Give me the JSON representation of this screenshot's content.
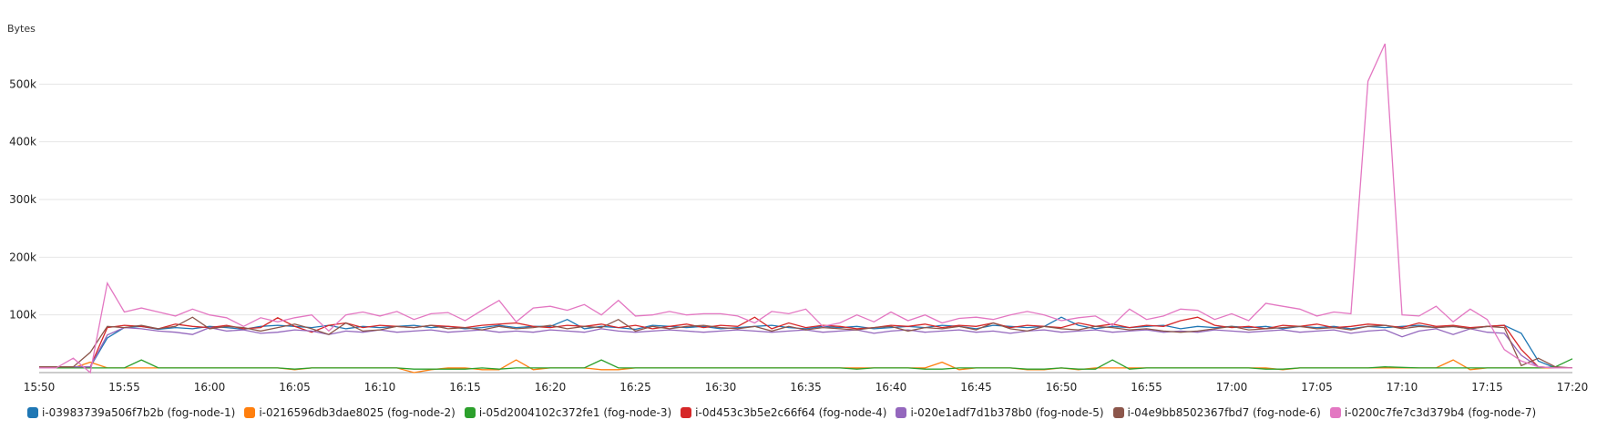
{
  "chart_data": {
    "type": "line",
    "ylabel": "Bytes",
    "ylim": [
      0,
      570000
    ],
    "y_ticks": [
      "100k",
      "200k",
      "300k",
      "400k",
      "500k"
    ],
    "y_tick_values": [
      100000,
      200000,
      300000,
      400000,
      500000
    ],
    "x_ticks": [
      "15:50",
      "15:55",
      "16:00",
      "16:05",
      "16:10",
      "16:15",
      "16:20",
      "16:25",
      "16:30",
      "16:35",
      "16:40",
      "16:45",
      "16:50",
      "16:55",
      "17:00",
      "17:05",
      "17:10",
      "17:15",
      "17:20"
    ],
    "x": [
      "15:50",
      "15:51",
      "15:52",
      "15:53",
      "15:54",
      "15:55",
      "15:56",
      "15:57",
      "15:58",
      "15:59",
      "16:00",
      "16:01",
      "16:02",
      "16:03",
      "16:04",
      "16:05",
      "16:06",
      "16:07",
      "16:08",
      "16:09",
      "16:10",
      "16:11",
      "16:12",
      "16:13",
      "16:14",
      "16:15",
      "16:16",
      "16:17",
      "16:18",
      "16:19",
      "16:20",
      "16:21",
      "16:22",
      "16:23",
      "16:24",
      "16:25",
      "16:26",
      "16:27",
      "16:28",
      "16:29",
      "16:30",
      "16:31",
      "16:32",
      "16:33",
      "16:34",
      "16:35",
      "16:36",
      "16:37",
      "16:38",
      "16:39",
      "16:40",
      "16:41",
      "16:42",
      "16:43",
      "16:44",
      "16:45",
      "16:46",
      "16:47",
      "16:48",
      "16:49",
      "16:50",
      "16:51",
      "16:52",
      "16:53",
      "16:54",
      "16:55",
      "16:56",
      "16:57",
      "16:58",
      "16:59",
      "17:00",
      "17:01",
      "17:02",
      "17:03",
      "17:04",
      "17:05",
      "17:06",
      "17:07",
      "17:08",
      "17:09",
      "17:10",
      "17:11",
      "17:12",
      "17:13",
      "17:14",
      "17:15",
      "17:16",
      "17:17",
      "17:18",
      "17:19",
      "17:20"
    ],
    "grid": true,
    "legend_position": "bottom",
    "series": [
      {
        "name": "i-03983739a506f7b2b (fog-node-1)",
        "color": "#1f77b4",
        "values": [
          8000,
          8000,
          8000,
          10000,
          60000,
          78000,
          80000,
          75000,
          78000,
          76000,
          80000,
          78000,
          75000,
          80000,
          82000,
          80000,
          78000,
          82000,
          76000,
          80000,
          78000,
          80000,
          82000,
          78000,
          80000,
          76000,
          78000,
          82000,
          78000,
          80000,
          80000,
          92000,
          76000,
          80000,
          78000,
          75000,
          82000,
          80000,
          78000,
          80000,
          76000,
          78000,
          80000,
          82000,
          78000,
          76000,
          80000,
          78000,
          80000,
          76000,
          78000,
          80000,
          78000,
          82000,
          80000,
          76000,
          82000,
          80000,
          78000,
          80000,
          96000,
          82000,
          76000,
          80000,
          78000,
          80000,
          82000,
          76000,
          80000,
          78000,
          80000,
          78000,
          80000,
          76000,
          80000,
          78000,
          80000,
          76000,
          80000,
          78000,
          80000,
          82000,
          78000,
          80000,
          76000,
          80000,
          82000,
          68000,
          20000,
          8000,
          8000
        ]
      },
      {
        "name": "i-0216596db3dae8025 (fog-node-2)",
        "color": "#ff7f0e",
        "values": [
          8000,
          8000,
          8000,
          18000,
          8000,
          8000,
          8000,
          8000,
          8000,
          8000,
          8000,
          8000,
          8000,
          8000,
          8000,
          5000,
          8000,
          8000,
          8000,
          8000,
          8000,
          8000,
          0,
          5000,
          8000,
          8000,
          5000,
          5000,
          22000,
          5000,
          8000,
          8000,
          8000,
          5000,
          5000,
          8000,
          8000,
          8000,
          8000,
          8000,
          8000,
          8000,
          8000,
          8000,
          8000,
          8000,
          8000,
          8000,
          8000,
          8000,
          8000,
          8000,
          8000,
          18000,
          5000,
          8000,
          8000,
          8000,
          5000,
          5000,
          8000,
          5000,
          8000,
          8000,
          8000,
          8000,
          8000,
          8000,
          8000,
          8000,
          8000,
          8000,
          8000,
          5000,
          8000,
          8000,
          8000,
          8000,
          8000,
          8000,
          8000,
          8000,
          8000,
          22000,
          5000,
          8000,
          8000,
          8000,
          8000,
          8000,
          8000
        ]
      },
      {
        "name": "i-05d2004102c372fe1 (fog-node-3)",
        "color": "#2ca02c",
        "values": [
          8000,
          8000,
          8000,
          8000,
          8000,
          8000,
          22000,
          8000,
          8000,
          8000,
          8000,
          8000,
          8000,
          8000,
          8000,
          6000,
          8000,
          8000,
          8000,
          8000,
          8000,
          8000,
          6000,
          6000,
          6000,
          6000,
          8000,
          6000,
          8000,
          8000,
          8000,
          8000,
          8000,
          22000,
          8000,
          8000,
          8000,
          8000,
          8000,
          8000,
          8000,
          8000,
          8000,
          8000,
          8000,
          8000,
          8000,
          8000,
          6000,
          8000,
          8000,
          8000,
          6000,
          6000,
          8000,
          8000,
          8000,
          8000,
          6000,
          6000,
          8000,
          6000,
          6000,
          22000,
          6000,
          8000,
          8000,
          8000,
          8000,
          8000,
          8000,
          8000,
          6000,
          6000,
          8000,
          8000,
          8000,
          8000,
          8000,
          10000,
          9000,
          8000,
          8000,
          8000,
          8000,
          8000,
          8000,
          8000,
          8000,
          10000,
          24000
        ]
      },
      {
        "name": "i-0d453c3b5e2c66f64 (fog-node-4)",
        "color": "#d62728",
        "values": [
          10000,
          10000,
          10000,
          10000,
          78000,
          82000,
          80000,
          76000,
          84000,
          80000,
          78000,
          82000,
          76000,
          78000,
          95000,
          80000,
          70000,
          82000,
          86000,
          78000,
          82000,
          80000,
          78000,
          82000,
          80000,
          78000,
          82000,
          84000,
          86000,
          80000,
          78000,
          82000,
          80000,
          84000,
          78000,
          82000,
          76000,
          80000,
          84000,
          78000,
          82000,
          80000,
          96000,
          76000,
          86000,
          78000,
          82000,
          80000,
          76000,
          78000,
          82000,
          80000,
          84000,
          78000,
          82000,
          80000,
          86000,
          78000,
          82000,
          80000,
          78000,
          86000,
          80000,
          84000,
          78000,
          82000,
          80000,
          90000,
          96000,
          82000,
          78000,
          80000,
          76000,
          82000,
          80000,
          84000,
          78000,
          80000,
          84000,
          82000,
          78000,
          86000,
          80000,
          82000,
          78000,
          80000,
          82000,
          40000,
          10000,
          8000,
          8000
        ]
      },
      {
        "name": "i-020e1adf7d1b378b0 (fog-node-5)",
        "color": "#9467bd",
        "values": [
          10000,
          10000,
          10000,
          10000,
          65000,
          78000,
          76000,
          72000,
          70000,
          66000,
          78000,
          72000,
          74000,
          68000,
          70000,
          74000,
          72000,
          66000,
          72000,
          70000,
          74000,
          70000,
          72000,
          74000,
          70000,
          72000,
          74000,
          70000,
          72000,
          70000,
          74000,
          72000,
          70000,
          76000,
          72000,
          70000,
          72000,
          74000,
          72000,
          70000,
          72000,
          74000,
          72000,
          70000,
          72000,
          74000,
          70000,
          72000,
          74000,
          68000,
          72000,
          74000,
          70000,
          72000,
          74000,
          70000,
          72000,
          68000,
          72000,
          74000,
          70000,
          72000,
          74000,
          70000,
          72000,
          74000,
          70000,
          72000,
          70000,
          74000,
          72000,
          70000,
          72000,
          74000,
          70000,
          72000,
          74000,
          68000,
          72000,
          74000,
          62000,
          72000,
          76000,
          66000,
          76000,
          70000,
          68000,
          30000,
          10000,
          8000,
          8000
        ]
      },
      {
        "name": "i-04e9bb8502367fbd7 (fog-node-6)",
        "color": "#8c564b",
        "values": [
          10000,
          10000,
          10000,
          35000,
          80000,
          78000,
          82000,
          76000,
          80000,
          96000,
          76000,
          80000,
          78000,
          72000,
          78000,
          84000,
          76000,
          66000,
          86000,
          72000,
          74000,
          80000,
          78000,
          82000,
          76000,
          78000,
          74000,
          80000,
          76000,
          78000,
          82000,
          76000,
          80000,
          78000,
          92000,
          72000,
          80000,
          76000,
          80000,
          82000,
          78000,
          76000,
          80000,
          72000,
          80000,
          74000,
          78000,
          76000,
          74000,
          78000,
          80000,
          72000,
          78000,
          76000,
          80000,
          74000,
          86000,
          76000,
          72000,
          80000,
          76000,
          74000,
          80000,
          78000,
          74000,
          76000,
          72000,
          70000,
          72000,
          76000,
          80000,
          74000,
          76000,
          78000,
          80000,
          76000,
          78000,
          74000,
          80000,
          82000,
          76000,
          80000,
          78000,
          80000,
          76000,
          80000,
          78000,
          12000,
          25000,
          10000,
          8000
        ]
      },
      {
        "name": "i-0200c7fe7c3d379b4 (fog-node-7)",
        "color": "#e377c2",
        "values": [
          8000,
          8000,
          25000,
          0,
          155000,
          105000,
          112000,
          105000,
          98000,
          110000,
          100000,
          95000,
          80000,
          95000,
          88000,
          95000,
          100000,
          72000,
          100000,
          105000,
          98000,
          106000,
          92000,
          102000,
          104000,
          90000,
          108000,
          125000,
          88000,
          112000,
          115000,
          108000,
          118000,
          100000,
          125000,
          98000,
          100000,
          106000,
          100000,
          102000,
          102000,
          98000,
          86000,
          106000,
          102000,
          110000,
          80000,
          86000,
          100000,
          88000,
          105000,
          90000,
          100000,
          86000,
          94000,
          96000,
          92000,
          100000,
          106000,
          100000,
          90000,
          95000,
          98000,
          82000,
          110000,
          92000,
          98000,
          110000,
          108000,
          92000,
          102000,
          90000,
          120000,
          115000,
          110000,
          98000,
          105000,
          102000,
          505000,
          570000,
          100000,
          98000,
          115000,
          88000,
          110000,
          92000,
          40000,
          20000,
          10000,
          8000,
          8000
        ]
      }
    ]
  }
}
